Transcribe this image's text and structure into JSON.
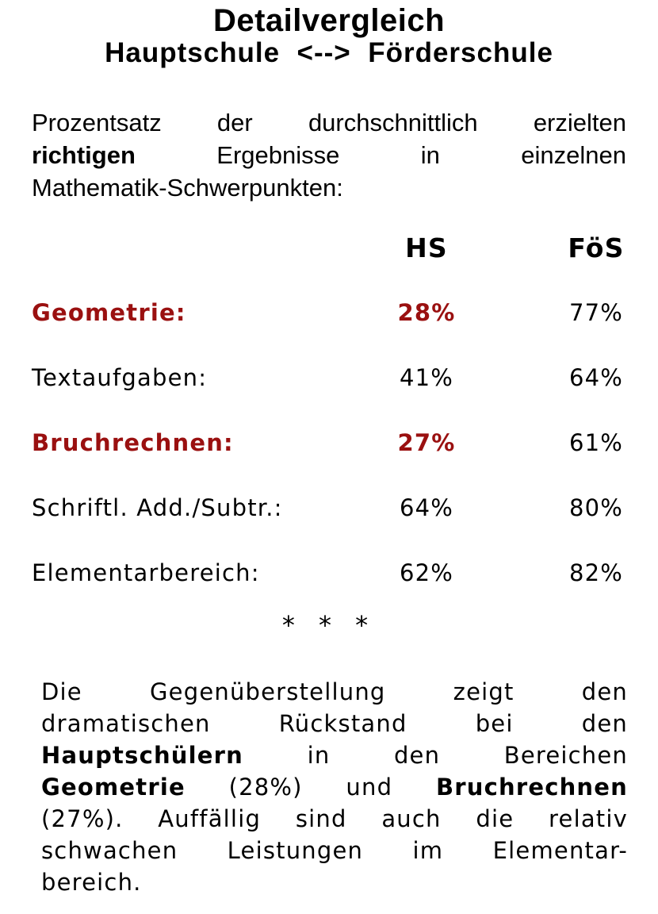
{
  "title": {
    "line1": "Detailvergleich",
    "line2": "Hauptschule  <-->  Förderschule"
  },
  "intro": {
    "lines": [
      {
        "segments": [
          {
            "text": "Prozentsatz der durchschnittlich erzielten"
          }
        ]
      },
      {
        "segments": [
          {
            "text": "richtigen",
            "bold": true
          },
          {
            "text": " Ergebnisse in einzelnen"
          }
        ]
      },
      {
        "segments": [
          {
            "text": "Mathematik-Schwerpunkten:"
          }
        ]
      }
    ]
  },
  "table": {
    "columns": {
      "hs": "HS",
      "foes": "FöS"
    },
    "rows": [
      {
        "label": "Geometrie:",
        "hs": "28%",
        "foes": "77%",
        "highlight": true
      },
      {
        "label": "Textaufgaben:",
        "hs": "41%",
        "foes": "64%",
        "highlight": false
      },
      {
        "label": "Bruchrechnen:",
        "hs": "27%",
        "foes": "61%",
        "highlight": true
      },
      {
        "label": "Schriftl. Add./Subtr.:",
        "hs": "64%",
        "foes": "80%",
        "highlight": false
      },
      {
        "label": "Elementarbereich:",
        "hs": "62%",
        "foes": "82%",
        "highlight": false
      }
    ]
  },
  "separator": "* * *",
  "summary": {
    "lines": [
      {
        "segments": [
          {
            "text": "Die Gegenüberstellung zeigt den"
          }
        ]
      },
      {
        "segments": [
          {
            "text": "dramatischen Rückstand bei den"
          }
        ]
      },
      {
        "segments": [
          {
            "text": "Hauptschülern",
            "bold": true
          },
          {
            "text": " in den Bereichen"
          }
        ]
      },
      {
        "segments": [
          {
            "text": "Geometrie",
            "bold": true
          },
          {
            "text": " (28%) und "
          },
          {
            "text": "Bruchrechnen",
            "bold": true
          }
        ]
      },
      {
        "segments": [
          {
            "text": "(27%). Auffällig sind auch die relativ"
          }
        ]
      },
      {
        "segments": [
          {
            "text": "schwachen Leistungen im Elementar-"
          }
        ]
      },
      {
        "segments": [
          {
            "text": "bereich."
          }
        ]
      }
    ]
  },
  "colors": {
    "highlight_red": "#9A1010",
    "text": "#000000",
    "background": "#FFFFFF"
  }
}
